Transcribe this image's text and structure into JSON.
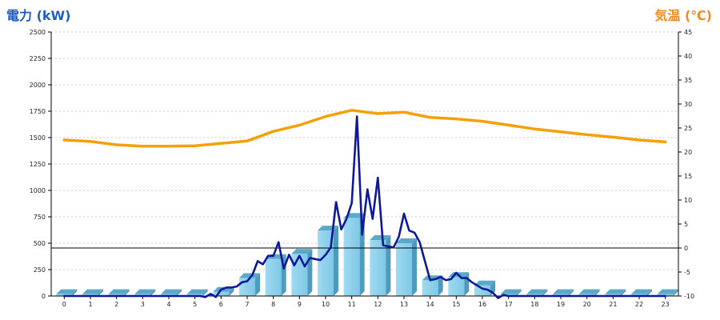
{
  "chart_data": {
    "type": "bar+line",
    "left_axis_title": "電力 (kW)",
    "right_axis_title": "気温 (℃)",
    "x_ticks": [
      "0",
      "1",
      "2",
      "3",
      "4",
      "5",
      "6",
      "7",
      "8",
      "9",
      "10",
      "11",
      "12",
      "13",
      "14",
      "15",
      "16",
      "17",
      "18",
      "19",
      "20",
      "21",
      "22",
      "23"
    ],
    "y_left_ticks": [
      "0",
      "250",
      "500",
      "750",
      "1000",
      "1250",
      "1500",
      "1750",
      "2000",
      "2250",
      "2500"
    ],
    "y_right_ticks": [
      "-10",
      "-5",
      "0",
      "5",
      "10",
      "15",
      "20",
      "25",
      "30",
      "35",
      "40",
      "45"
    ],
    "ylim_left": [
      0,
      2500
    ],
    "ylim_right": [
      -10,
      45
    ],
    "grid": true,
    "zero_line_temp": 0,
    "colors": {
      "bars": "#87cdea",
      "bar_side": "#4d9cbf",
      "power_line": "#10189a",
      "temp_line": "#f5a00a",
      "left_title": "#1f5fbf",
      "right_title": "#f08a24"
    },
    "series": [
      {
        "kind": "bar",
        "axis": "left",
        "categories": [
          0,
          1,
          2,
          3,
          4,
          5,
          6,
          7,
          8,
          9,
          10,
          11,
          12,
          13,
          14,
          15,
          16,
          17,
          18,
          19,
          20,
          21,
          22,
          23
        ],
        "values": [
          0,
          0,
          0,
          0,
          0,
          0,
          40,
          170,
          350,
          400,
          620,
          740,
          530,
          500,
          150,
          180,
          100,
          0,
          0,
          0,
          0,
          0,
          0,
          0
        ]
      },
      {
        "kind": "line",
        "axis": "left",
        "x": [
          0,
          0.5,
          1,
          1.5,
          2,
          2.5,
          3,
          3.5,
          4,
          4.5,
          5,
          5.2,
          5.4,
          5.6,
          5.8,
          6,
          6.2,
          6.4,
          6.6,
          6.8,
          7,
          7.2,
          7.4,
          7.6,
          7.8,
          8,
          8.2,
          8.4,
          8.6,
          8.8,
          9,
          9.2,
          9.4,
          9.6,
          9.8,
          10,
          10.2,
          10.4,
          10.6,
          10.8,
          11,
          11.2,
          11.4,
          11.6,
          11.8,
          12,
          12.2,
          12.4,
          12.6,
          12.8,
          13,
          13.2,
          13.4,
          13.6,
          13.8,
          14,
          14.2,
          14.4,
          14.6,
          14.8,
          15,
          15.2,
          15.4,
          15.6,
          15.8,
          16,
          16.2,
          16.4,
          16.6,
          16.8,
          17,
          17.5,
          18,
          18.5,
          19,
          19.5,
          20,
          20.5,
          21,
          21.5,
          22,
          22.5,
          23
        ],
        "values": [
          0,
          0,
          0,
          0,
          0,
          0,
          0,
          0,
          0,
          0,
          0,
          0,
          -10,
          20,
          -10,
          60,
          80,
          80,
          90,
          130,
          140,
          200,
          330,
          300,
          380,
          380,
          510,
          260,
          390,
          290,
          380,
          280,
          360,
          350,
          340,
          390,
          460,
          890,
          630,
          730,
          880,
          1700,
          580,
          1010,
          730,
          1120,
          480,
          470,
          460,
          560,
          780,
          620,
          600,
          510,
          330,
          150,
          160,
          180,
          150,
          160,
          220,
          170,
          170,
          130,
          100,
          70,
          60,
          30,
          -20,
          10,
          0,
          0,
          0,
          0,
          0,
          0,
          0,
          0,
          0,
          0,
          0,
          0,
          0
        ]
      },
      {
        "kind": "line",
        "axis": "right",
        "x": [
          0,
          1,
          2,
          3,
          4,
          5,
          6,
          7,
          8,
          9,
          10,
          11,
          12,
          13,
          14,
          15,
          16,
          17,
          18,
          19,
          20,
          21,
          22,
          23
        ],
        "values": [
          22.5,
          22.2,
          21.5,
          21.2,
          21.2,
          21.3,
          21.8,
          22.3,
          24.3,
          25.6,
          27.4,
          28.7,
          28.0,
          28.3,
          27.2,
          26.9,
          26.4,
          25.6,
          24.8,
          24.2,
          23.6,
          23.1,
          22.5,
          22.1
        ]
      }
    ]
  }
}
